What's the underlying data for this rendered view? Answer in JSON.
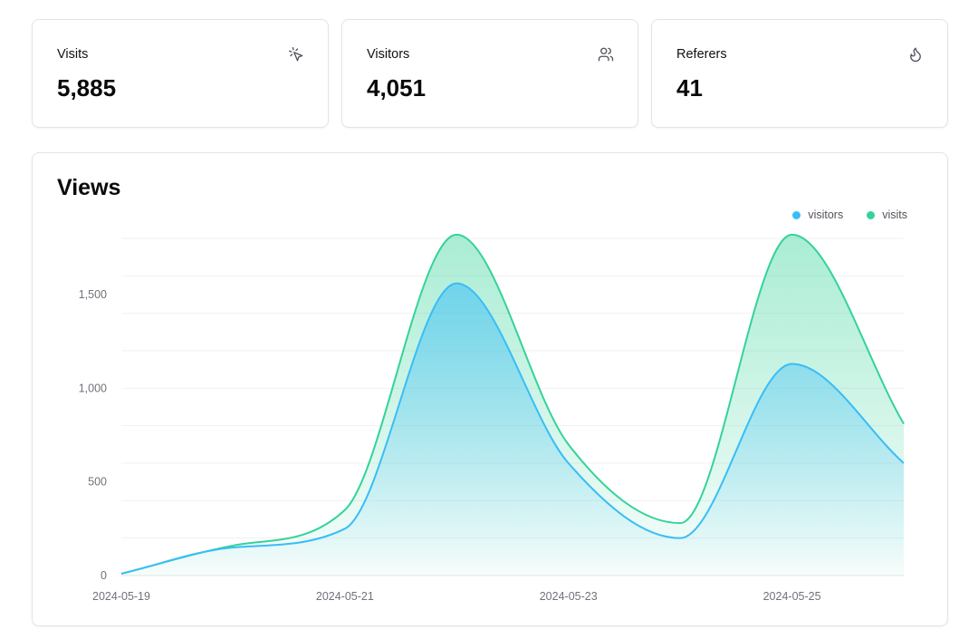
{
  "stats": [
    {
      "label": "Visits",
      "value": "5,885",
      "icon": "mouse-pointer-click-icon"
    },
    {
      "label": "Visitors",
      "value": "4,051",
      "icon": "users-icon"
    },
    {
      "label": "Referers",
      "value": "41",
      "icon": "flame-icon"
    }
  ],
  "chart": {
    "title": "Views",
    "legend": [
      {
        "label": "visitors",
        "color": "#38bdf8"
      },
      {
        "label": "visits",
        "color": "#34d399"
      }
    ]
  },
  "chart_data": {
    "type": "area",
    "title": "Views",
    "x": [
      "2024-05-19",
      "2024-05-20",
      "2024-05-21",
      "2024-05-22",
      "2024-05-23",
      "2024-05-24",
      "2024-05-25",
      "2024-05-26"
    ],
    "x_tick_labels": [
      "2024-05-19",
      "2024-05-21",
      "2024-05-23",
      "2024-05-25"
    ],
    "y_tick_labels": [
      "0",
      "500",
      "1,000",
      "1,500"
    ],
    "ylim": [
      0,
      1800
    ],
    "series": [
      {
        "name": "visitors",
        "color": "#38bdf8",
        "values": [
          10,
          150,
          250,
          1560,
          600,
          200,
          1130,
          600
        ]
      },
      {
        "name": "visits",
        "color": "#34d399",
        "values": [
          10,
          160,
          350,
          1820,
          700,
          280,
          1820,
          810
        ]
      }
    ],
    "grid": true,
    "legend_position": "top-right"
  }
}
